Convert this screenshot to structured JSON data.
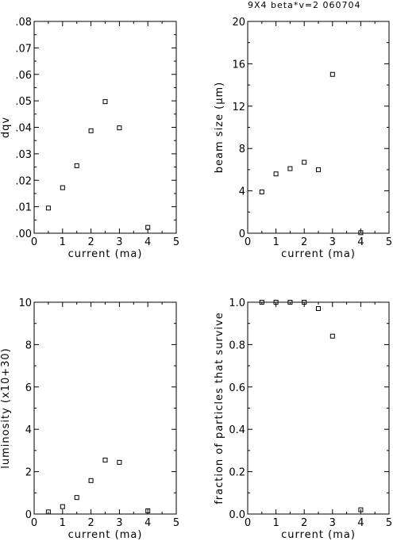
{
  "title": "9X4 beta*v=2 060704",
  "chart_data": [
    {
      "type": "scatter",
      "xlabel": "current (ma)",
      "ylabel": "dqv",
      "xlim": [
        0,
        5
      ],
      "ylim": [
        0,
        0.08
      ],
      "xticks": [
        "0",
        "1",
        "2",
        "3",
        "4",
        "5"
      ],
      "yticks": [
        ".00",
        ".01",
        ".02",
        ".03",
        ".04",
        ".05",
        ".06",
        ".07",
        ".08"
      ],
      "x": [
        0.5,
        1.0,
        1.5,
        2.0,
        2.5,
        3.0,
        4.0
      ],
      "y": [
        0.0095,
        0.0172,
        0.0255,
        0.0387,
        0.0497,
        0.0398,
        0.0022
      ],
      "grid": false,
      "marker": "square"
    },
    {
      "type": "scatter",
      "xlabel": "current (ma)",
      "ylabel": "beam size (μm)",
      "xlim": [
        0,
        5
      ],
      "ylim": [
        0,
        20
      ],
      "xticks": [
        "0",
        "1",
        "2",
        "3",
        "4",
        "5"
      ],
      "yticks": [
        "0",
        "4",
        "8",
        "12",
        "16",
        "20"
      ],
      "x": [
        0.5,
        1.0,
        1.5,
        2.0,
        2.5,
        3.0,
        4.0
      ],
      "y": [
        3.9,
        5.6,
        6.1,
        6.7,
        6.0,
        15.0,
        0.05
      ],
      "grid": false,
      "marker": "square"
    },
    {
      "type": "scatter",
      "xlabel": "current (ma)",
      "ylabel": "luminosity (x10+30)",
      "xlim": [
        0,
        5
      ],
      "ylim": [
        0,
        10
      ],
      "xticks": [
        "0",
        "1",
        "2",
        "3",
        "4",
        "5"
      ],
      "yticks": [
        "0",
        "2",
        "4",
        "6",
        "8",
        "10"
      ],
      "x": [
        0.5,
        1.0,
        1.5,
        2.0,
        2.5,
        3.0,
        4.0
      ],
      "y": [
        0.1,
        0.35,
        0.78,
        1.58,
        2.55,
        2.44,
        0.15
      ],
      "grid": false,
      "marker": "square"
    },
    {
      "type": "scatter",
      "xlabel": "current (ma)",
      "ylabel": "fraction of particles that survive",
      "xlim": [
        0,
        5
      ],
      "ylim": [
        0,
        1.0
      ],
      "xticks": [
        "0",
        "1",
        "2",
        "3",
        "4",
        "5"
      ],
      "yticks": [
        "0.0",
        "0.2",
        "0.4",
        "0.6",
        "0.8",
        "1.0"
      ],
      "x": [
        0.5,
        1.0,
        1.5,
        2.0,
        2.5,
        3.0,
        4.0
      ],
      "y": [
        1.0,
        1.0,
        1.0,
        1.0,
        0.97,
        0.84,
        0.02
      ],
      "grid": false,
      "marker": "square"
    }
  ]
}
